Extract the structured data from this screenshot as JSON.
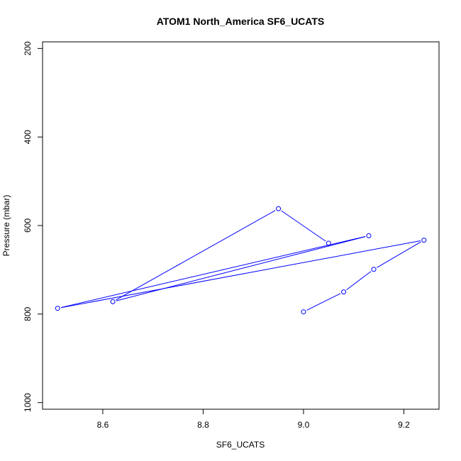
{
  "chart_data": {
    "type": "line",
    "title": "ATOM1 North_America SF6_UCATS",
    "xlabel": "SF6_UCATS",
    "ylabel": "Pressure (mbar)",
    "xlim": [
      8.48,
      9.27
    ],
    "ylim": [
      1015,
      185
    ],
    "y_inverted": true,
    "grid": false,
    "x_ticks": [
      "8.6",
      "8.8",
      "9.0",
      "9.2"
    ],
    "y_ticks": [
      "200",
      "400",
      "600",
      "800",
      "1000"
    ],
    "series": [
      {
        "color": "#0000ff",
        "marker": "open-circle",
        "x": [
          9.0,
          9.08,
          9.14,
          9.24,
          8.51,
          9.13,
          8.62,
          8.95,
          9.05
        ],
        "y": [
          795,
          750,
          699,
          633,
          787,
          623,
          772,
          562,
          640
        ]
      }
    ]
  }
}
